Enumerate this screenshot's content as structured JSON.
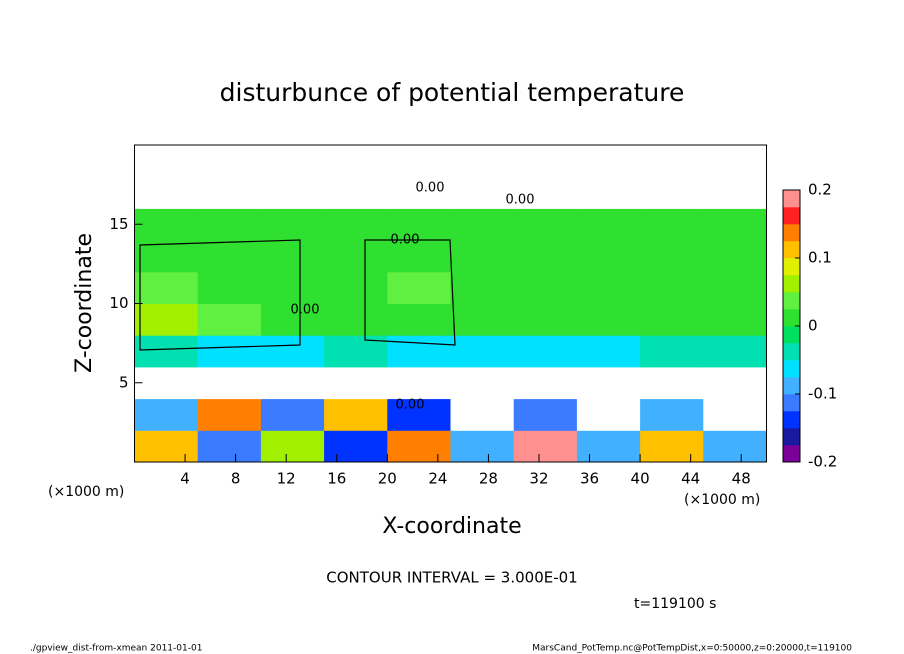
{
  "chart_data": {
    "type": "heatmap",
    "title": "disturbunce of potential temperature",
    "x_label": "X-coordinate",
    "y_label": "Z-coordinate",
    "x_unit_left": "(×1000 m)",
    "x_unit_right": "(×1000 m)",
    "contour_interval": "CONTOUR INTERVAL = 3.000E-01",
    "time_label": "t=119100 s",
    "footer_left": "./gpview_dist-from-xmean  2011-01-01",
    "footer_right": "MarsCand_PotTemp.nc@PotTempDist,x=0:50000,z=0:20000,t=119100",
    "contour_labels": [
      "0.00",
      "0.00",
      "0.00",
      "0.00",
      "0.00"
    ],
    "xlim": [
      0,
      50
    ],
    "ylim": [
      0,
      20
    ],
    "xticks": [
      4,
      8,
      12,
      16,
      20,
      24,
      28,
      32,
      36,
      40,
      44,
      48
    ],
    "yticks": [
      5,
      10,
      15
    ],
    "xbins": [
      0,
      5,
      10,
      15,
      20,
      25,
      30,
      35,
      40,
      45,
      50
    ],
    "zbins": [
      0,
      2,
      4,
      6,
      8,
      10,
      12,
      14,
      16,
      18,
      20
    ],
    "values": [
      [
        0.1,
        -0.12,
        0.05,
        -0.15,
        0.15,
        -0.1,
        0.18,
        -0.08,
        0.12,
        -0.1
      ],
      [
        -0.1,
        0.15,
        -0.12,
        0.12,
        -0.15,
        0.3,
        -0.12,
        0.3,
        -0.1,
        0.3
      ],
      [
        0.3,
        0.3,
        0.3,
        0.3,
        0.3,
        0.3,
        0.3,
        0.3,
        0.3,
        0.3
      ],
      [
        -0.05,
        -0.06,
        -0.06,
        -0.05,
        -0.06,
        -0.06,
        -0.07,
        -0.06,
        -0.05,
        -0.05
      ],
      [
        0.05,
        0.03,
        0.01,
        0.01,
        0.02,
        0.01,
        0.01,
        0.0,
        0.01,
        0.01
      ],
      [
        0.03,
        0.02,
        0.01,
        0.0,
        0.03,
        0.0,
        0.01,
        0.0,
        0.0,
        0.01
      ],
      [
        0.01,
        0.01,
        0.01,
        0.0,
        0.0,
        0.0,
        0.01,
        0.0,
        0.0,
        0.01
      ],
      [
        0.0,
        0.0,
        0.01,
        0.0,
        0.0,
        0.0,
        0.0,
        0.0,
        0.0,
        0.0
      ],
      [
        0.3,
        0.3,
        0.3,
        0.3,
        0.3,
        0.3,
        0.3,
        0.3,
        0.3,
        0.3
      ],
      [
        0.3,
        0.3,
        0.3,
        0.3,
        0.3,
        0.3,
        0.3,
        0.3,
        0.3,
        0.3
      ]
    ],
    "clim": [
      -0.2,
      0.2
    ],
    "cticks": [
      -0.2,
      -0.1,
      0,
      0.1,
      0.2
    ],
    "colors": [
      "#7a0099",
      "#1a1aa0",
      "#0033ff",
      "#3a7bff",
      "#40b0ff",
      "#00e0ff",
      "#00e0b0",
      "#00e060",
      "#30e030",
      "#60f040",
      "#a0f000",
      "#e0f000",
      "#ffc000",
      "#ff8000",
      "#ff2020",
      "#ff9090"
    ],
    "out_of_range_color": "#ffffff"
  }
}
